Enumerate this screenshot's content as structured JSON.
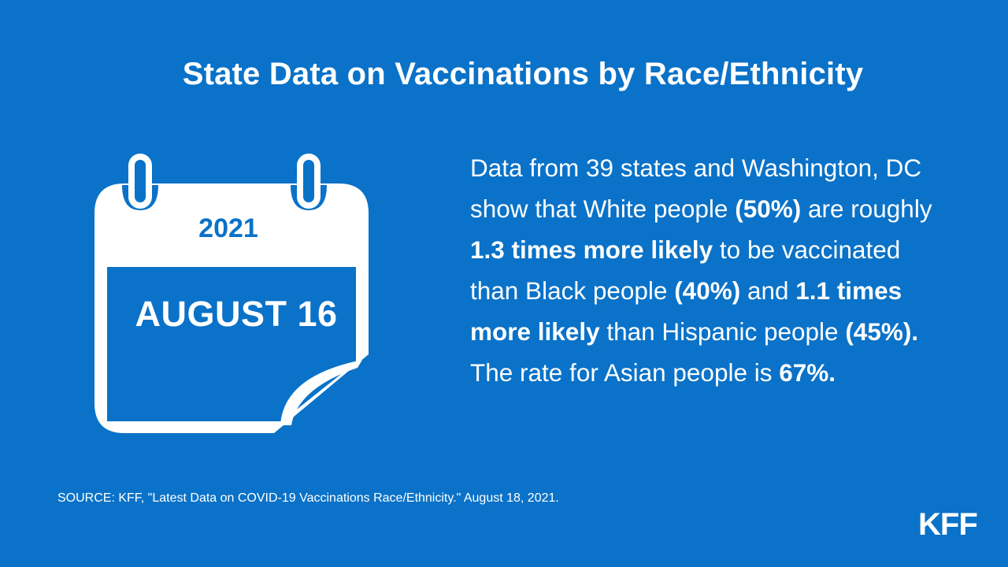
{
  "title": "State Data on Vaccinations by Race/Ethnicity",
  "calendar": {
    "year": "2021",
    "date": "AUGUST 16",
    "icon": "calendar-icon"
  },
  "body": {
    "p1": "Data from 39 states and Washington, DC show that White people ",
    "b1": "(50%)",
    "p2": " are roughly ",
    "b2": "1.3 times more likely",
    "p3": " to be vaccinated than Black people ",
    "b3": "(40%)",
    "p4": " and ",
    "b4": "1.1 times more likely",
    "p5": " than Hispanic people ",
    "b5": "(45%).",
    "p6": " The rate for Asian people is ",
    "b6": "67%."
  },
  "source": "SOURCE: KFF, \"Latest Data on COVID-19 Vaccinations Race/Ethnicity.\" August 18, 2021.",
  "logo": "KFF",
  "colors": {
    "background": "#0a72c8",
    "foreground": "#ffffff"
  }
}
